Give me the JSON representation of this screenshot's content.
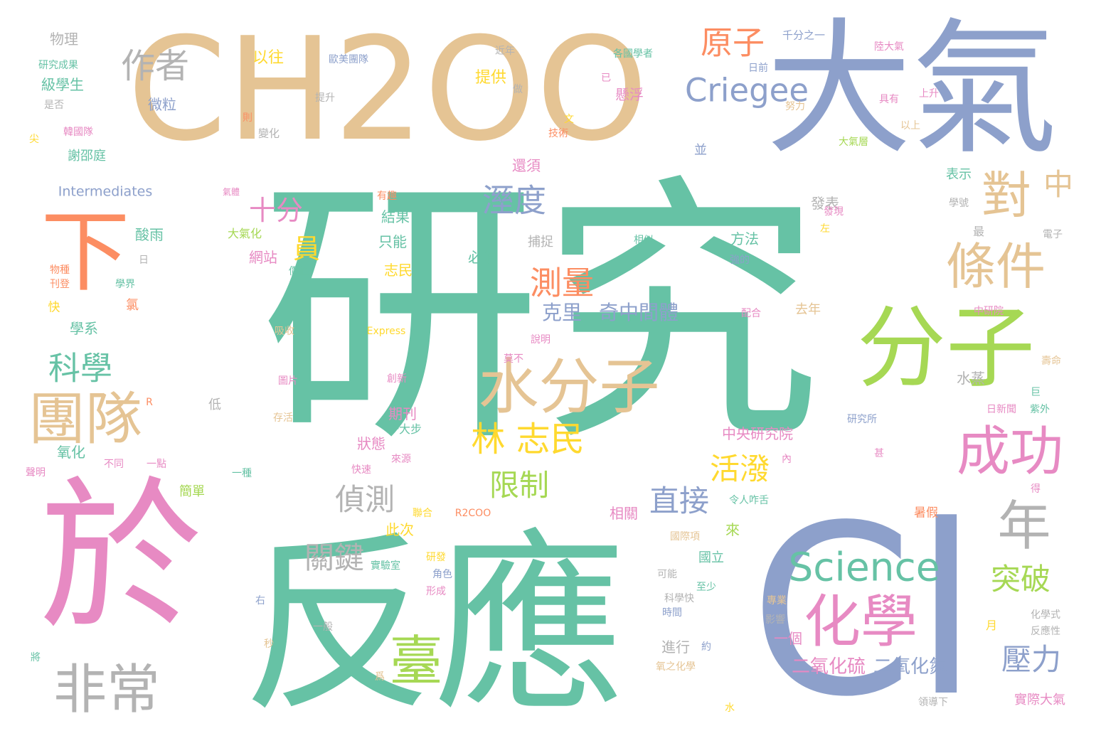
{
  "palette": {
    "teal": "#66c2a5",
    "orange": "#fc8d62",
    "blue": "#8da0cb",
    "pink": "#e78ac3",
    "green": "#a6d854",
    "yellow": "#ffd92f",
    "tan": "#e5c494",
    "gray": "#b3b3b3"
  },
  "words": [
    {
      "text": "研究",
      "color": "teal"
    },
    {
      "text": "CH2OO",
      "color": "tan"
    },
    {
      "text": "大氣",
      "color": "blue"
    },
    {
      "text": "於",
      "color": "pink"
    },
    {
      "text": "反應",
      "color": "teal"
    },
    {
      "text": "Cl",
      "color": "blue"
    },
    {
      "text": "分子",
      "color": "green"
    },
    {
      "text": "團隊",
      "color": "tan"
    },
    {
      "text": "水分子",
      "color": "tan"
    },
    {
      "text": "非常",
      "color": "gray"
    },
    {
      "text": "化學",
      "color": "pink"
    },
    {
      "text": "臺",
      "color": "green"
    },
    {
      "text": "成功",
      "color": "pink"
    },
    {
      "text": "Science",
      "color": "teal"
    },
    {
      "text": "下",
      "color": "orange"
    },
    {
      "text": "條件",
      "color": "tan"
    },
    {
      "text": "對",
      "color": "tan"
    },
    {
      "text": "年",
      "color": "gray"
    },
    {
      "text": "Criegee",
      "color": "blue"
    },
    {
      "text": "作者",
      "color": "gray"
    },
    {
      "text": "原子",
      "color": "orange"
    },
    {
      "text": "林 志民",
      "color": "yellow"
    },
    {
      "text": "中",
      "color": "tan"
    },
    {
      "text": "科學",
      "color": "teal"
    },
    {
      "text": "溼度",
      "color": "blue"
    },
    {
      "text": "測量",
      "color": "orange"
    },
    {
      "text": "關鍵",
      "color": "gray"
    },
    {
      "text": "偵測",
      "color": "gray"
    },
    {
      "text": "直接",
      "color": "blue"
    },
    {
      "text": "限制",
      "color": "green"
    },
    {
      "text": "壓力",
      "color": "blue"
    },
    {
      "text": "突破",
      "color": "green"
    },
    {
      "text": "活潑",
      "color": "yellow"
    },
    {
      "text": "十分",
      "color": "pink"
    },
    {
      "text": "員",
      "color": "yellow"
    },
    {
      "text": "克里",
      "color": "blue"
    },
    {
      "text": "奇中間體",
      "color": "blue"
    },
    {
      "text": "二氧化硫",
      "color": "pink"
    },
    {
      "text": "二氧化氮",
      "color": "blue"
    },
    {
      "text": "Intermediates",
      "color": "blue"
    },
    {
      "text": "中央研究院",
      "color": "pink"
    },
    {
      "text": "物理",
      "color": "gray"
    },
    {
      "text": "以往",
      "color": "yellow"
    },
    {
      "text": "微粒",
      "color": "blue"
    },
    {
      "text": "提供",
      "color": "yellow"
    },
    {
      "text": "懸浮",
      "color": "pink"
    },
    {
      "text": "歐美團隊",
      "color": "blue"
    },
    {
      "text": "千分之一",
      "color": "blue"
    },
    {
      "text": "級學生",
      "color": "teal"
    },
    {
      "text": "謝邵庭",
      "color": "teal"
    },
    {
      "text": "韓國隊",
      "color": "pink"
    },
    {
      "text": "變化",
      "color": "gray"
    },
    {
      "text": "酸雨",
      "color": "teal"
    },
    {
      "text": "大氣化",
      "color": "green"
    },
    {
      "text": "網站",
      "color": "pink"
    },
    {
      "text": "結果",
      "color": "teal"
    },
    {
      "text": "只能",
      "color": "teal"
    },
    {
      "text": "志民",
      "color": "yellow"
    },
    {
      "text": "必須",
      "color": "teal"
    },
    {
      "text": "捕捉",
      "color": "gray"
    },
    {
      "text": "方法",
      "color": "teal"
    },
    {
      "text": "發表",
      "color": "gray"
    },
    {
      "text": "表示",
      "color": "teal"
    },
    {
      "text": "還須",
      "color": "pink"
    },
    {
      "text": "並",
      "color": "blue"
    },
    {
      "text": "學系",
      "color": "teal"
    },
    {
      "text": "氧化",
      "color": "teal"
    },
    {
      "text": "期刊",
      "color": "pink"
    },
    {
      "text": "狀態",
      "color": "pink"
    },
    {
      "text": "一大步",
      "color": "teal"
    },
    {
      "text": "此次",
      "color": "yellow"
    },
    {
      "text": "來",
      "color": "green"
    },
    {
      "text": "相關",
      "color": "pink"
    },
    {
      "text": "國立",
      "color": "teal"
    },
    {
      "text": "去年",
      "color": "tan"
    },
    {
      "text": "水蒸",
      "color": "gray"
    },
    {
      "text": "一個",
      "color": "pink"
    },
    {
      "text": "進行",
      "color": "gray"
    },
    {
      "text": "暑假",
      "color": "orange"
    },
    {
      "text": "實際大氣",
      "color": "pink"
    },
    {
      "text": "Express",
      "color": "yellow"
    },
    {
      "text": "R2COO",
      "color": "orange"
    },
    {
      "text": "低",
      "color": "gray"
    },
    {
      "text": "簡單",
      "color": "green"
    },
    {
      "text": "快",
      "color": "yellow"
    },
    {
      "text": "氯",
      "color": "orange"
    },
    {
      "text": "近年",
      "color": "gray"
    },
    {
      "text": "陸大氣",
      "color": "pink"
    },
    {
      "text": "日前",
      "color": "blue"
    },
    {
      "text": "研究成果",
      "color": "teal"
    },
    {
      "text": "是否",
      "color": "gray"
    },
    {
      "text": "提升",
      "color": "gray"
    },
    {
      "text": "最",
      "color": "gray"
    },
    {
      "text": "一般",
      "color": "gray"
    },
    {
      "text": "月",
      "color": "yellow"
    },
    {
      "text": "化學式",
      "color": "gray"
    },
    {
      "text": "反應性",
      "color": "gray"
    },
    {
      "text": "約",
      "color": "blue"
    },
    {
      "text": "角色",
      "color": "blue"
    },
    {
      "text": "形成",
      "color": "pink"
    },
    {
      "text": "秒",
      "color": "tan"
    },
    {
      "text": "左",
      "color": "yellow"
    },
    {
      "text": "上升",
      "color": "pink"
    },
    {
      "text": "以上",
      "color": "tan"
    },
    {
      "text": "努力",
      "color": "tan"
    },
    {
      "text": "大氣層",
      "color": "green"
    },
    {
      "text": "具有",
      "color": "pink"
    },
    {
      "text": "有趣",
      "color": "orange"
    },
    {
      "text": "技術",
      "color": "orange"
    },
    {
      "text": "文",
      "color": "yellow"
    },
    {
      "text": "已",
      "color": "pink"
    },
    {
      "text": "做",
      "color": "gray"
    },
    {
      "text": "則",
      "color": "orange"
    },
    {
      "text": "氣體",
      "color": "pink"
    },
    {
      "text": "相似",
      "color": "teal"
    },
    {
      "text": "圖片",
      "color": "pink"
    },
    {
      "text": "R",
      "color": "orange"
    },
    {
      "text": "日",
      "color": "gray"
    },
    {
      "text": "右",
      "color": "blue"
    },
    {
      "text": "將",
      "color": "teal"
    },
    {
      "text": "爲",
      "color": "tan"
    },
    {
      "text": "水",
      "color": "yellow"
    },
    {
      "text": "尖",
      "color": "yellow"
    },
    {
      "text": "時間",
      "color": "blue"
    },
    {
      "text": "至少",
      "color": "teal"
    },
    {
      "text": "專業",
      "color": "tan"
    },
    {
      "text": "影響",
      "color": "gray"
    },
    {
      "text": "可能",
      "color": "gray"
    },
    {
      "text": "研發",
      "color": "yellow"
    },
    {
      "text": "實驗室",
      "color": "teal"
    },
    {
      "text": "一點",
      "color": "pink"
    },
    {
      "text": "不同",
      "color": "pink"
    },
    {
      "text": "快速",
      "color": "pink"
    },
    {
      "text": "巨",
      "color": "teal"
    },
    {
      "text": "研究所",
      "color": "blue"
    },
    {
      "text": "紫外",
      "color": "teal"
    },
    {
      "text": "日新聞",
      "color": "pink"
    },
    {
      "text": "壽命",
      "color": "tan"
    },
    {
      "text": "中研院",
      "color": "pink"
    },
    {
      "text": "配合",
      "color": "pink"
    },
    {
      "text": "強的",
      "color": "blue"
    },
    {
      "text": "吸收",
      "color": "tan"
    },
    {
      "text": "說明",
      "color": "pink"
    },
    {
      "text": "莫不",
      "color": "pink"
    },
    {
      "text": "創新",
      "color": "pink"
    },
    {
      "text": "令人咋舌",
      "color": "teal"
    },
    {
      "text": "國際項",
      "color": "tan"
    },
    {
      "text": "科學快",
      "color": "gray"
    },
    {
      "text": "氧之化學",
      "color": "tan"
    },
    {
      "text": "領導下",
      "color": "gray"
    },
    {
      "text": "發現",
      "color": "pink"
    },
    {
      "text": "聯合",
      "color": "yellow"
    },
    {
      "text": "得",
      "color": "pink"
    },
    {
      "text": "內",
      "color": "pink"
    },
    {
      "text": "甚",
      "color": "pink"
    },
    {
      "text": "存活",
      "color": "tan"
    },
    {
      "text": "來源",
      "color": "pink"
    },
    {
      "text": "一種",
      "color": "teal"
    },
    {
      "text": "學界",
      "color": "teal"
    },
    {
      "text": "刊登",
      "color": "orange"
    },
    {
      "text": "物種",
      "color": "orange"
    },
    {
      "text": "聲明",
      "color": "pink"
    },
    {
      "text": "價值",
      "color": "teal"
    },
    {
      "text": "電子",
      "color": "gray"
    },
    {
      "text": "各國學者",
      "color": "teal"
    },
    {
      "text": "學號",
      "color": "gray"
    }
  ]
}
